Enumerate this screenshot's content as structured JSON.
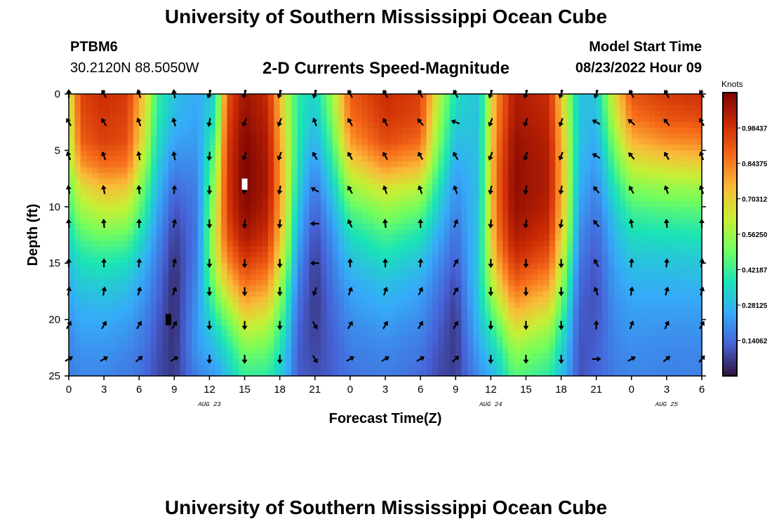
{
  "header": {
    "title": "University of Southern Mississippi Ocean Cube",
    "station_id": "PTBM6",
    "station_location": "30.2120N  88.5050W",
    "subtitle": "2-D Currents Speed-Magnitude",
    "model_start_label": "Model Start Time",
    "model_start_value": "08/23/2022 Hour 09"
  },
  "footer": {
    "title": "University of Southern Mississippi Ocean Cube"
  },
  "chart_data": {
    "type": "heatmap",
    "title": "2-D Currents Speed-Magnitude",
    "xlabel": "Forecast Time(Z)",
    "ylabel": "Depth (ft)",
    "x_range_hours": [
      0,
      54
    ],
    "y_range": [
      0,
      25
    ],
    "x_tick_labels": [
      "0",
      "3",
      "6",
      "9",
      "12",
      "15",
      "18",
      "21",
      "0",
      "3",
      "6",
      "9",
      "12",
      "15",
      "18",
      "21",
      "0",
      "3",
      "6"
    ],
    "y_tick_labels": [
      "0",
      "5",
      "10",
      "15",
      "20",
      "25"
    ],
    "date_labels": [
      {
        "label": "AUG 23",
        "hour": 12
      },
      {
        "label": "AUG 24",
        "hour": 36
      },
      {
        "label": "AUG 25",
        "hour": 51
      }
    ],
    "colorbar": {
      "units": "Knots",
      "labels": [
        "0.98437",
        "0.84375",
        "0.70312",
        "0.56250",
        "0.42187",
        "0.28125",
        "0.14062"
      ],
      "range": [
        0,
        1.125
      ],
      "colors": [
        "#30123b",
        "#4662d7",
        "#36aaf9",
        "#1ae4b6",
        "#72fe5e",
        "#c8ef34",
        "#faba39",
        "#f66b19",
        "#cb2a04",
        "#7a0403"
      ]
    },
    "speed_by_hour": [
      {
        "hour": 0,
        "speed": [
          0.62,
          0.6,
          0.58,
          0.55,
          0.48,
          0.42,
          0.35,
          0.3,
          0.26,
          0.23,
          0.2,
          0.18,
          0.17
        ]
      },
      {
        "hour": 1,
        "speed": [
          0.95,
          0.93,
          0.9,
          0.8,
          0.66,
          0.56,
          0.46,
          0.38,
          0.32,
          0.27,
          0.24,
          0.21,
          0.19
        ]
      },
      {
        "hour": 3,
        "speed": [
          1.0,
          0.98,
          0.96,
          0.88,
          0.74,
          0.62,
          0.5,
          0.4,
          0.33,
          0.28,
          0.24,
          0.21,
          0.19
        ]
      },
      {
        "hour": 5,
        "speed": [
          0.97,
          0.95,
          0.93,
          0.86,
          0.72,
          0.6,
          0.48,
          0.38,
          0.31,
          0.26,
          0.22,
          0.19,
          0.17
        ]
      },
      {
        "hour": 6.5,
        "speed": [
          0.7,
          0.66,
          0.62,
          0.55,
          0.47,
          0.4,
          0.33,
          0.27,
          0.23,
          0.2,
          0.17,
          0.15,
          0.14
        ]
      },
      {
        "hour": 7.5,
        "speed": [
          0.42,
          0.4,
          0.37,
          0.33,
          0.29,
          0.25,
          0.21,
          0.18,
          0.15,
          0.13,
          0.11,
          0.1,
          0.09
        ]
      },
      {
        "hour": 9,
        "speed": [
          0.3,
          0.28,
          0.24,
          0.19,
          0.14,
          0.1,
          0.07,
          0.05,
          0.04,
          0.04,
          0.04,
          0.05,
          0.06
        ]
      },
      {
        "hour": 11,
        "speed": [
          0.25,
          0.24,
          0.22,
          0.2,
          0.18,
          0.17,
          0.17,
          0.18,
          0.2,
          0.22,
          0.23,
          0.22,
          0.18
        ]
      },
      {
        "hour": 12.5,
        "speed": [
          0.34,
          0.38,
          0.45,
          0.52,
          0.58,
          0.62,
          0.64,
          0.62,
          0.55,
          0.45,
          0.35,
          0.28,
          0.22
        ]
      },
      {
        "hour": 13.5,
        "speed": [
          0.92,
          0.94,
          0.96,
          0.97,
          0.97,
          0.96,
          0.92,
          0.84,
          0.72,
          0.58,
          0.45,
          0.36,
          0.3
        ]
      },
      {
        "hour": 15,
        "speed": [
          1.07,
          1.09,
          1.11,
          1.12,
          1.12,
          1.1,
          1.06,
          0.98,
          0.88,
          0.76,
          0.62,
          0.5,
          0.42
        ]
      },
      {
        "hour": 17,
        "speed": [
          1.0,
          1.02,
          1.04,
          1.05,
          1.05,
          1.03,
          0.99,
          0.92,
          0.82,
          0.7,
          0.58,
          0.48,
          0.4
        ]
      },
      {
        "hour": 18.5,
        "speed": [
          0.62,
          0.64,
          0.66,
          0.68,
          0.68,
          0.66,
          0.62,
          0.56,
          0.48,
          0.42,
          0.36,
          0.31,
          0.28
        ]
      },
      {
        "hour": 19.5,
        "speed": [
          0.4,
          0.4,
          0.39,
          0.37,
          0.34,
          0.3,
          0.26,
          0.22,
          0.18,
          0.15,
          0.13,
          0.12,
          0.12
        ]
      },
      {
        "hour": 21,
        "speed": [
          0.33,
          0.3,
          0.26,
          0.21,
          0.16,
          0.12,
          0.09,
          0.07,
          0.06,
          0.06,
          0.07,
          0.08,
          0.1
        ]
      },
      {
        "hour": 22.5,
        "speed": [
          0.56,
          0.52,
          0.46,
          0.39,
          0.32,
          0.26,
          0.21,
          0.18,
          0.16,
          0.14,
          0.13,
          0.12,
          0.12
        ]
      },
      {
        "hour": 24,
        "speed": [
          0.9,
          0.87,
          0.8,
          0.68,
          0.56,
          0.45,
          0.36,
          0.3,
          0.25,
          0.22,
          0.19,
          0.17,
          0.16
        ]
      },
      {
        "hour": 27,
        "speed": [
          1.0,
          0.98,
          0.94,
          0.82,
          0.66,
          0.54,
          0.44,
          0.36,
          0.3,
          0.26,
          0.22,
          0.19,
          0.17
        ]
      },
      {
        "hour": 30,
        "speed": [
          0.96,
          0.94,
          0.88,
          0.76,
          0.6,
          0.48,
          0.38,
          0.31,
          0.26,
          0.22,
          0.19,
          0.16,
          0.14
        ]
      },
      {
        "hour": 31.5,
        "speed": [
          0.62,
          0.58,
          0.53,
          0.46,
          0.38,
          0.32,
          0.26,
          0.21,
          0.17,
          0.14,
          0.12,
          0.1,
          0.09
        ]
      },
      {
        "hour": 33,
        "speed": [
          0.36,
          0.33,
          0.29,
          0.25,
          0.21,
          0.18,
          0.15,
          0.12,
          0.09,
          0.07,
          0.06,
          0.06,
          0.07
        ]
      },
      {
        "hour": 35,
        "speed": [
          0.3,
          0.3,
          0.3,
          0.3,
          0.3,
          0.31,
          0.32,
          0.33,
          0.33,
          0.31,
          0.28,
          0.24,
          0.2
        ]
      },
      {
        "hour": 36.5,
        "speed": [
          0.82,
          0.84,
          0.86,
          0.88,
          0.89,
          0.88,
          0.85,
          0.79,
          0.69,
          0.57,
          0.45,
          0.36,
          0.3
        ]
      },
      {
        "hour": 38,
        "speed": [
          1.05,
          1.06,
          1.08,
          1.09,
          1.09,
          1.08,
          1.05,
          0.99,
          0.9,
          0.79,
          0.66,
          0.54,
          0.46
        ]
      },
      {
        "hour": 41,
        "speed": [
          1.0,
          1.01,
          1.03,
          1.04,
          1.04,
          1.02,
          0.98,
          0.91,
          0.81,
          0.69,
          0.57,
          0.47,
          0.4
        ]
      },
      {
        "hour": 42.5,
        "speed": [
          0.58,
          0.6,
          0.62,
          0.63,
          0.63,
          0.61,
          0.57,
          0.51,
          0.44,
          0.37,
          0.31,
          0.27,
          0.24
        ]
      },
      {
        "hour": 43.5,
        "speed": [
          0.3,
          0.3,
          0.3,
          0.28,
          0.26,
          0.23,
          0.2,
          0.17,
          0.14,
          0.12,
          0.11,
          0.1,
          0.1
        ]
      },
      {
        "hour": 45,
        "speed": [
          0.3,
          0.28,
          0.25,
          0.22,
          0.19,
          0.16,
          0.13,
          0.11,
          0.1,
          0.1,
          0.11,
          0.12,
          0.13
        ]
      },
      {
        "hour": 46.5,
        "speed": [
          0.66,
          0.6,
          0.52,
          0.44,
          0.37,
          0.31,
          0.27,
          0.24,
          0.22,
          0.2,
          0.19,
          0.18,
          0.17
        ]
      },
      {
        "hour": 48,
        "speed": [
          0.92,
          0.86,
          0.76,
          0.64,
          0.52,
          0.43,
          0.36,
          0.31,
          0.27,
          0.24,
          0.22,
          0.2,
          0.19
        ]
      },
      {
        "hour": 51,
        "speed": [
          0.97,
          0.92,
          0.82,
          0.68,
          0.55,
          0.45,
          0.37,
          0.31,
          0.27,
          0.24,
          0.21,
          0.19,
          0.18
        ]
      },
      {
        "hour": 54,
        "speed": [
          0.99,
          0.94,
          0.84,
          0.7,
          0.56,
          0.46,
          0.38,
          0.32,
          0.28,
          0.24,
          0.21,
          0.19,
          0.18
        ]
      }
    ],
    "vector_hours": [
      0,
      3,
      6,
      9,
      12,
      15,
      18,
      21,
      24,
      27,
      30,
      33,
      36,
      39,
      42,
      45,
      48,
      51,
      54
    ],
    "vector_depths_ft": [
      0,
      2.5,
      5.5,
      8.5,
      11.5,
      15,
      17.5,
      20.5,
      23.5
    ],
    "vector_direction_deg": [
      [
        0,
        330,
        340,
        350,
        200,
        200,
        200,
        200,
        330,
        330,
        330,
        330,
        200,
        200,
        200,
        200,
        330,
        330,
        330
      ],
      [
        330,
        330,
        340,
        345,
        190,
        200,
        200,
        340,
        330,
        330,
        320,
        290,
        200,
        200,
        200,
        300,
        310,
        320,
        330
      ],
      [
        340,
        340,
        350,
        350,
        185,
        200,
        200,
        330,
        330,
        330,
        330,
        330,
        200,
        200,
        200,
        300,
        320,
        330,
        340
      ],
      [
        350,
        350,
        355,
        5,
        180,
        190,
        190,
        300,
        330,
        340,
        340,
        340,
        190,
        190,
        190,
        320,
        330,
        340,
        340
      ],
      [
        355,
        355,
        0,
        10,
        180,
        185,
        185,
        270,
        335,
        355,
        0,
        20,
        185,
        190,
        190,
        320,
        350,
        355,
        0
      ],
      [
        0,
        0,
        5,
        10,
        180,
        180,
        180,
        270,
        0,
        0,
        5,
        30,
        180,
        180,
        180,
        330,
        5,
        5,
        10
      ],
      [
        10,
        10,
        15,
        20,
        180,
        180,
        180,
        200,
        20,
        20,
        25,
        30,
        180,
        180,
        180,
        340,
        10,
        15,
        15
      ],
      [
        30,
        30,
        30,
        30,
        180,
        180,
        180,
        150,
        30,
        30,
        30,
        30,
        180,
        180,
        180,
        0,
        20,
        25,
        30
      ],
      [
        60,
        60,
        50,
        60,
        180,
        180,
        180,
        150,
        60,
        60,
        60,
        50,
        180,
        180,
        180,
        90,
        60,
        50,
        40
      ]
    ],
    "markers": [
      {
        "hour": 15,
        "depth_ft": 8,
        "color": "#ffffff"
      },
      {
        "hour": 8.5,
        "depth_ft": 20,
        "color": "#000000"
      }
    ]
  }
}
